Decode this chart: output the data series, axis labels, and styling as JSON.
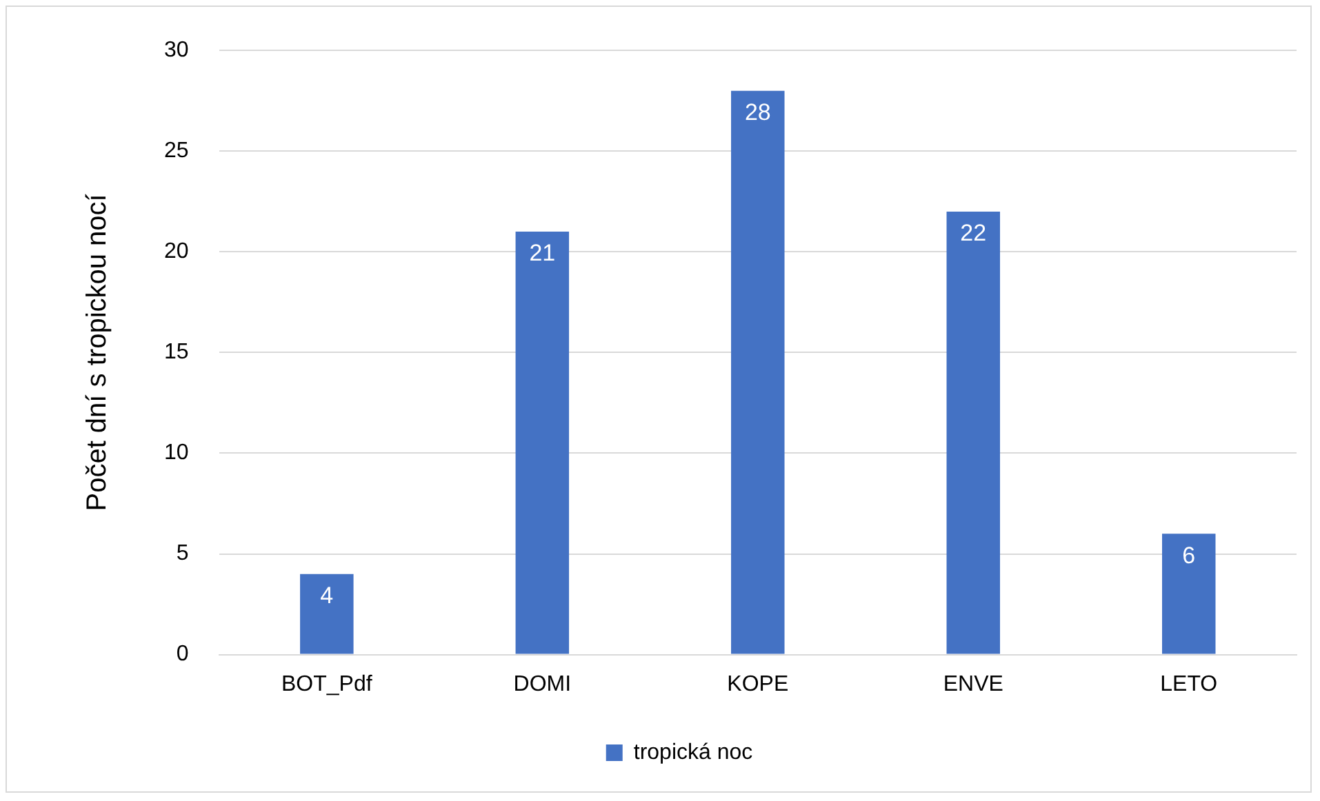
{
  "chart_data": {
    "type": "bar",
    "ylabel": "Počet dní s tropickou nocí",
    "categories": [
      "BOT_Pdf",
      "DOMI",
      "KOPE",
      "ENVE",
      "LETO"
    ],
    "series": [
      {
        "name": "tropická noc",
        "color": "#4472c4",
        "values": [
          4,
          21,
          28,
          22,
          6
        ]
      }
    ],
    "ylim": [
      0,
      30
    ],
    "yticks": [
      0,
      5,
      10,
      15,
      20,
      25,
      30
    ],
    "grid": "y",
    "legend": "bottom",
    "data_labels": true
  }
}
